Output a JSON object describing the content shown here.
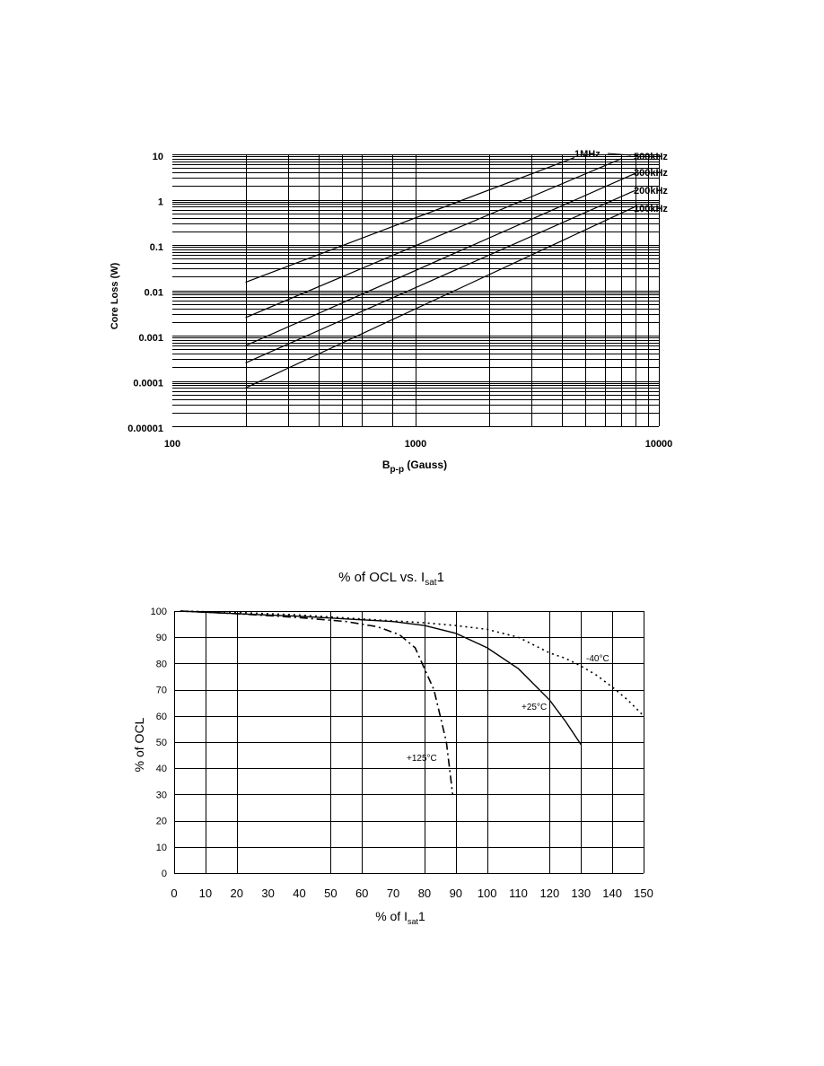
{
  "chart_data": [
    {
      "type": "line",
      "ylabel": "Core Loss (W)",
      "xlabel_main": "B",
      "xlabel_sub": "p-p",
      "xlabel_rest": " (Gauss)",
      "x_scale": "log",
      "y_scale": "log",
      "xlim": [
        100,
        10000
      ],
      "ylim": [
        1e-05,
        10
      ],
      "x_ticks": [
        {
          "value": 100,
          "label": "100"
        },
        {
          "value": 1000,
          "label": "1000"
        },
        {
          "value": 10000,
          "label": "10000"
        }
      ],
      "y_ticks": [
        {
          "value": 10,
          "label": "10"
        },
        {
          "value": 1,
          "label": "1"
        },
        {
          "value": 0.1,
          "label": "0.1"
        },
        {
          "value": 0.01,
          "label": "0.01"
        },
        {
          "value": 0.001,
          "label": "0.001"
        },
        {
          "value": 0.0001,
          "label": "0.0001"
        },
        {
          "value": 1e-05,
          "label": "0.00001"
        }
      ],
      "grid": true,
      "series": [
        {
          "name": "1MHz",
          "points": [
            [
              200,
              0.015
            ],
            [
              4500,
              8.5
            ]
          ]
        },
        {
          "name": "500kHz",
          "points": [
            [
              200,
              0.0025
            ],
            [
              7000,
              8.0
            ]
          ]
        },
        {
          "name": "300kHz",
          "points": [
            [
              200,
              0.0006
            ],
            [
              8000,
              3.8
            ]
          ]
        },
        {
          "name": "200kHz",
          "points": [
            [
              200,
              0.00025
            ],
            [
              8000,
              1.6
            ]
          ]
        },
        {
          "name": "100kHz",
          "points": [
            [
              200,
              7e-05
            ],
            [
              8000,
              0.7
            ]
          ]
        }
      ]
    },
    {
      "type": "line",
      "title_main": "% of OCL vs. I",
      "title_sub": "sat",
      "title_end": "1",
      "ylabel": "% of OCL",
      "xlabel_main": "% of I",
      "xlabel_sub": "sat",
      "xlabel_end": "1",
      "xlim": [
        0,
        150
      ],
      "ylim": [
        0,
        100
      ],
      "x_ticks": [
        0,
        10,
        20,
        30,
        40,
        50,
        60,
        70,
        80,
        90,
        100,
        110,
        120,
        130,
        140,
        150
      ],
      "y_ticks": [
        0,
        10,
        20,
        30,
        40,
        50,
        60,
        70,
        80,
        90,
        100
      ],
      "grid": true,
      "series": [
        {
          "name": "-40°C",
          "style": "dotted",
          "points": [
            [
              2,
              100
            ],
            [
              20,
              99.5
            ],
            [
              40,
              98.5
            ],
            [
              60,
              97
            ],
            [
              80,
              95.5
            ],
            [
              90,
              94.5
            ],
            [
              100,
              93
            ],
            [
              110,
              90
            ],
            [
              115,
              87
            ],
            [
              120,
              84
            ],
            [
              125,
              82
            ],
            [
              130,
              79
            ],
            [
              135,
              75.5
            ],
            [
              140,
              71
            ],
            [
              145,
              66
            ],
            [
              150,
              60
            ]
          ]
        },
        {
          "name": "+25°C",
          "style": "solid",
          "points": [
            [
              2,
              100
            ],
            [
              20,
              99
            ],
            [
              40,
              98
            ],
            [
              55,
              97
            ],
            [
              70,
              96
            ],
            [
              80,
              94.5
            ],
            [
              90,
              91.5
            ],
            [
              100,
              86
            ],
            [
              110,
              78
            ],
            [
              120,
              66
            ],
            [
              125,
              58
            ],
            [
              130,
              49
            ]
          ]
        },
        {
          "name": "+125°C",
          "style": "dashdot",
          "points": [
            [
              2,
              100
            ],
            [
              20,
              99
            ],
            [
              40,
              97.5
            ],
            [
              55,
              96
            ],
            [
              65,
              94
            ],
            [
              72,
              91
            ],
            [
              77,
              86
            ],
            [
              80,
              78
            ],
            [
              83,
              70
            ],
            [
              85,
              60
            ],
            [
              87,
              50
            ],
            [
              88,
              40
            ],
            [
              89,
              30
            ]
          ]
        }
      ]
    }
  ]
}
